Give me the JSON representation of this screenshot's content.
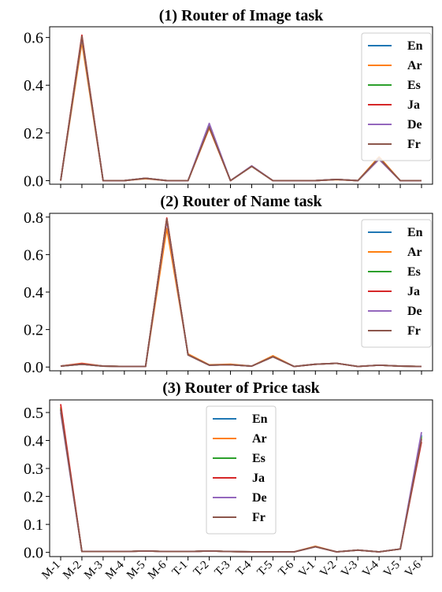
{
  "chart_data": [
    {
      "type": "line",
      "title": "(1) Router of Image task",
      "ylim": [
        -0.015,
        0.645
      ],
      "yticks": [
        0.0,
        0.2,
        0.4,
        0.6
      ],
      "ytick_labels": [
        "0.0",
        "0.2",
        "0.4",
        "0.6"
      ],
      "legend_position": "upper-right",
      "show_x_labels": false,
      "series": [
        {
          "name": "En",
          "color": "#1f77b4",
          "values": [
            0.0,
            0.6,
            0.0,
            0.0,
            0.01,
            0.0,
            0.0,
            0.23,
            0.0,
            0.06,
            0.0,
            0.0,
            0.0,
            0.005,
            0.0,
            0.09,
            0.0,
            0.0
          ]
        },
        {
          "name": "Ar",
          "color": "#ff7f0e",
          "values": [
            0.0,
            0.58,
            0.0,
            0.0,
            0.008,
            0.0,
            0.0,
            0.22,
            0.0,
            0.06,
            0.0,
            0.0,
            0.0,
            0.004,
            0.0,
            0.1,
            0.0,
            0.0
          ]
        },
        {
          "name": "Es",
          "color": "#2ca02c",
          "values": [
            0.0,
            0.6,
            0.0,
            0.0,
            0.01,
            0.0,
            0.0,
            0.23,
            0.0,
            0.06,
            0.0,
            0.0,
            0.0,
            0.005,
            0.0,
            0.09,
            0.0,
            0.0
          ]
        },
        {
          "name": "Ja",
          "color": "#d62728",
          "values": [
            0.0,
            0.61,
            0.0,
            0.0,
            0.01,
            0.0,
            0.0,
            0.225,
            0.0,
            0.06,
            0.0,
            0.0,
            0.0,
            0.005,
            0.0,
            0.09,
            0.0,
            0.0
          ]
        },
        {
          "name": "De",
          "color": "#9467bd",
          "values": [
            0.0,
            0.6,
            0.0,
            0.0,
            0.01,
            0.0,
            0.0,
            0.24,
            0.0,
            0.062,
            0.0,
            0.0,
            0.0,
            0.005,
            0.0,
            0.09,
            0.0,
            0.0
          ]
        },
        {
          "name": "Fr",
          "color": "#8c564b",
          "values": [
            0.0,
            0.605,
            0.0,
            0.0,
            0.01,
            0.0,
            0.0,
            0.225,
            0.0,
            0.06,
            0.0,
            0.0,
            0.0,
            0.005,
            0.0,
            0.095,
            0.0,
            0.0
          ]
        }
      ]
    },
    {
      "type": "line",
      "title": "(2) Router of Name task",
      "ylim": [
        -0.02,
        0.82
      ],
      "yticks": [
        0.0,
        0.2,
        0.4,
        0.6,
        0.8
      ],
      "ytick_labels": [
        "0.0",
        "0.2",
        "0.4",
        "0.6",
        "0.8"
      ],
      "legend_position": "upper-right",
      "show_x_labels": false,
      "series": [
        {
          "name": "En",
          "color": "#1f77b4",
          "values": [
            0.005,
            0.015,
            0.005,
            0.003,
            0.003,
            0.79,
            0.065,
            0.01,
            0.012,
            0.005,
            0.055,
            0.003,
            0.015,
            0.02,
            0.003,
            0.01,
            0.005,
            0.003
          ]
        },
        {
          "name": "Ar",
          "color": "#ff7f0e",
          "values": [
            0.005,
            0.02,
            0.005,
            0.003,
            0.003,
            0.74,
            0.07,
            0.012,
            0.015,
            0.005,
            0.06,
            0.003,
            0.015,
            0.02,
            0.003,
            0.01,
            0.005,
            0.003
          ]
        },
        {
          "name": "Es",
          "color": "#2ca02c",
          "values": [
            0.005,
            0.015,
            0.005,
            0.003,
            0.003,
            0.79,
            0.065,
            0.01,
            0.012,
            0.005,
            0.055,
            0.003,
            0.015,
            0.02,
            0.003,
            0.01,
            0.005,
            0.003
          ]
        },
        {
          "name": "Ja",
          "color": "#d62728",
          "values": [
            0.005,
            0.018,
            0.005,
            0.003,
            0.003,
            0.795,
            0.065,
            0.01,
            0.012,
            0.005,
            0.055,
            0.003,
            0.015,
            0.02,
            0.003,
            0.01,
            0.005,
            0.003
          ]
        },
        {
          "name": "De",
          "color": "#9467bd",
          "values": [
            0.005,
            0.015,
            0.005,
            0.003,
            0.003,
            0.78,
            0.065,
            0.01,
            0.012,
            0.005,
            0.055,
            0.003,
            0.015,
            0.02,
            0.003,
            0.01,
            0.005,
            0.003
          ]
        },
        {
          "name": "Fr",
          "color": "#8c564b",
          "values": [
            0.005,
            0.015,
            0.005,
            0.003,
            0.003,
            0.79,
            0.065,
            0.01,
            0.012,
            0.005,
            0.055,
            0.003,
            0.015,
            0.02,
            0.003,
            0.01,
            0.005,
            0.003
          ]
        }
      ]
    },
    {
      "type": "line",
      "title": "(3) Router of Price task",
      "ylim": [
        -0.015,
        0.545
      ],
      "yticks": [
        0.0,
        0.1,
        0.2,
        0.3,
        0.4,
        0.5
      ],
      "ytick_labels": [
        "0.0",
        "0.1",
        "0.2",
        "0.3",
        "0.4",
        "0.5"
      ],
      "legend_position": "upper-center",
      "show_x_labels": true,
      "categories": [
        "M-1",
        "M-2",
        "M-3",
        "M-4",
        "M-5",
        "M-6",
        "T-1",
        "T-2",
        "T-3",
        "T-4",
        "T-5",
        "T-6",
        "V-1",
        "V-2",
        "V-3",
        "V-4",
        "V-5",
        "V-6"
      ],
      "series": [
        {
          "name": "En",
          "color": "#1f77b4",
          "values": [
            0.51,
            0.003,
            0.003,
            0.003,
            0.005,
            0.003,
            0.003,
            0.005,
            0.003,
            0.002,
            0.002,
            0.002,
            0.02,
            0.002,
            0.008,
            0.002,
            0.012,
            0.42
          ]
        },
        {
          "name": "Ar",
          "color": "#ff7f0e",
          "values": [
            0.52,
            0.003,
            0.003,
            0.003,
            0.005,
            0.003,
            0.003,
            0.005,
            0.003,
            0.002,
            0.002,
            0.002,
            0.022,
            0.002,
            0.008,
            0.002,
            0.012,
            0.41
          ]
        },
        {
          "name": "Es",
          "color": "#2ca02c",
          "values": [
            0.515,
            0.003,
            0.003,
            0.003,
            0.005,
            0.003,
            0.003,
            0.005,
            0.003,
            0.002,
            0.002,
            0.002,
            0.02,
            0.002,
            0.008,
            0.002,
            0.012,
            0.415
          ]
        },
        {
          "name": "Ja",
          "color": "#d62728",
          "values": [
            0.53,
            0.003,
            0.003,
            0.003,
            0.005,
            0.003,
            0.003,
            0.005,
            0.003,
            0.002,
            0.002,
            0.002,
            0.02,
            0.002,
            0.008,
            0.002,
            0.012,
            0.395
          ]
        },
        {
          "name": "De",
          "color": "#9467bd",
          "values": [
            0.5,
            0.003,
            0.003,
            0.003,
            0.005,
            0.003,
            0.003,
            0.005,
            0.003,
            0.002,
            0.002,
            0.002,
            0.02,
            0.002,
            0.008,
            0.002,
            0.012,
            0.43
          ]
        },
        {
          "name": "Fr",
          "color": "#8c564b",
          "values": [
            0.51,
            0.003,
            0.003,
            0.003,
            0.005,
            0.003,
            0.003,
            0.005,
            0.003,
            0.002,
            0.002,
            0.002,
            0.02,
            0.002,
            0.008,
            0.002,
            0.012,
            0.405
          ]
        }
      ]
    }
  ]
}
